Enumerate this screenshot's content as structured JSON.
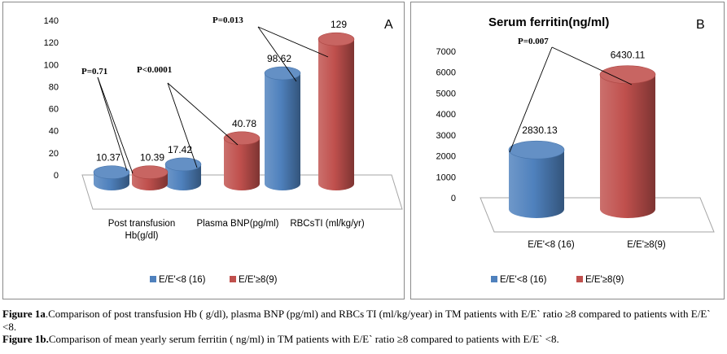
{
  "colors": {
    "blue": "#4f81bd",
    "red": "#c0504d"
  },
  "chart_data": [
    {
      "type": "bar",
      "panel_letter": "A",
      "categories": [
        "Post transfusion Hb(g/dl)",
        "Plasma BNP(pg/ml)",
        "RBCsTI (ml/kg/yr)"
      ],
      "category_lines": [
        [
          "Post transfusion",
          "Hb(g/dl)"
        ],
        [
          "Plasma BNP(pg/ml)"
        ],
        [
          "RBCsTI  (ml/kg/yr)"
        ]
      ],
      "series": [
        {
          "name": "E/E'<8 (16)",
          "values": [
            10.37,
            17.42,
            98.62
          ]
        },
        {
          "name": "E/E'≥8(9)",
          "values": [
            10.39,
            40.78,
            129
          ]
        }
      ],
      "data_labels": [
        [
          "10.37",
          "17.42",
          "98.62"
        ],
        [
          "10.39",
          "40.78",
          "129"
        ]
      ],
      "p_values": [
        "P=0.71",
        "P<0.0001",
        "P=0.013"
      ],
      "yticks": [
        "0",
        "20",
        "40",
        "60",
        "80",
        "100",
        "120",
        "140"
      ],
      "ylim": [
        0,
        140
      ],
      "legend_position": "bottom"
    },
    {
      "type": "bar",
      "panel_letter": "B",
      "title": "Serum ferritin(ng/ml)",
      "categories": [
        "E/E'<8 (16)",
        "E/E'≥8(9)"
      ],
      "values": [
        2830.13,
        6430.11
      ],
      "data_labels": [
        "2830.13",
        "6430.11"
      ],
      "p_value": "P=0.007",
      "yticks": [
        "0",
        "1000",
        "2000",
        "3000",
        "4000",
        "5000",
        "6000",
        "7000"
      ],
      "ylim": [
        0,
        7000
      ],
      "legend": [
        "E/E'<8 (16)",
        "E/E'≥8(9)"
      ],
      "legend_position": "bottom"
    }
  ],
  "caption": {
    "fig1a_label": "Figure 1a",
    "fig1a_text": ".Comparison of post transfusion Hb ( g/dl), plasma BNP (pg/ml) and RBCs TI (ml/kg/year) in TM patients with E/E` ratio ≥8 compared to patients with E/E` <8.",
    "fig1b_label": "Figure 1b.",
    "fig1b_text": "Comparison of mean yearly serum ferritin ( ng/ml) in TM patients with E/E` ratio  ≥8 compared to patients with E/E` <8."
  }
}
